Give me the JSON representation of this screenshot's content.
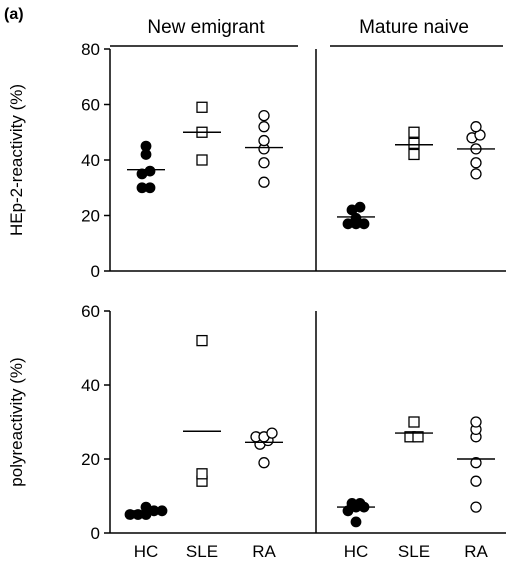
{
  "figure": {
    "panel_label": "(a)",
    "group_headers": [
      "New emigrant",
      "Mature naive"
    ]
  },
  "chart_data": [
    {
      "type": "scatter",
      "ylabel": "HEp-2-reactivity (%)",
      "ylim": [
        0,
        80
      ],
      "yticks": [
        0,
        20,
        40,
        60,
        80
      ],
      "categories": [
        "HC",
        "SLE",
        "RA"
      ],
      "markers": {
        "HC": "filled-circle",
        "SLE": "open-square",
        "RA": "open-circle"
      },
      "groups": [
        {
          "name": "New emigrant",
          "points": {
            "HC": [
              45,
              42,
              36,
              35,
              30,
              30
            ],
            "SLE": [
              59,
              50,
              40
            ],
            "RA": [
              56,
              52,
              47,
              44,
              39,
              32
            ]
          },
          "means": {
            "HC": 36.5,
            "SLE": 50,
            "RA": 44.5
          }
        },
        {
          "name": "Mature naive",
          "points": {
            "HC": [
              23,
              22,
              19,
              17,
              17,
              17
            ],
            "SLE": [
              50,
              46,
              42
            ],
            "RA": [
              52,
              49,
              48,
              44,
              39,
              35
            ]
          },
          "means": {
            "HC": 19.5,
            "SLE": 45.5,
            "RA": 44
          }
        }
      ]
    },
    {
      "type": "scatter",
      "ylabel": "polyreactivity (%)",
      "ylim": [
        0,
        60
      ],
      "yticks": [
        0,
        20,
        40,
        60
      ],
      "categories": [
        "HC",
        "SLE",
        "RA"
      ],
      "markers": {
        "HC": "filled-circle",
        "SLE": "open-square",
        "RA": "open-circle"
      },
      "groups": [
        {
          "name": "New emigrant",
          "points": {
            "HC": [
              7,
              6,
              6,
              5,
              5,
              5
            ],
            "SLE": [
              52,
              16,
              14
            ],
            "RA": [
              27,
              26,
              26,
              25,
              24,
              19
            ]
          },
          "means": {
            "HC": 6,
            "SLE": 27.5,
            "RA": 24.5
          }
        },
        {
          "name": "Mature naive",
          "points": {
            "HC": [
              8,
              8,
              7,
              7,
              6,
              3
            ],
            "SLE": [
              30,
              26,
              26
            ],
            "RA": [
              30,
              28,
              26,
              19,
              14,
              7
            ]
          },
          "means": {
            "HC": 7,
            "SLE": 27,
            "RA": 20
          }
        }
      ]
    }
  ]
}
